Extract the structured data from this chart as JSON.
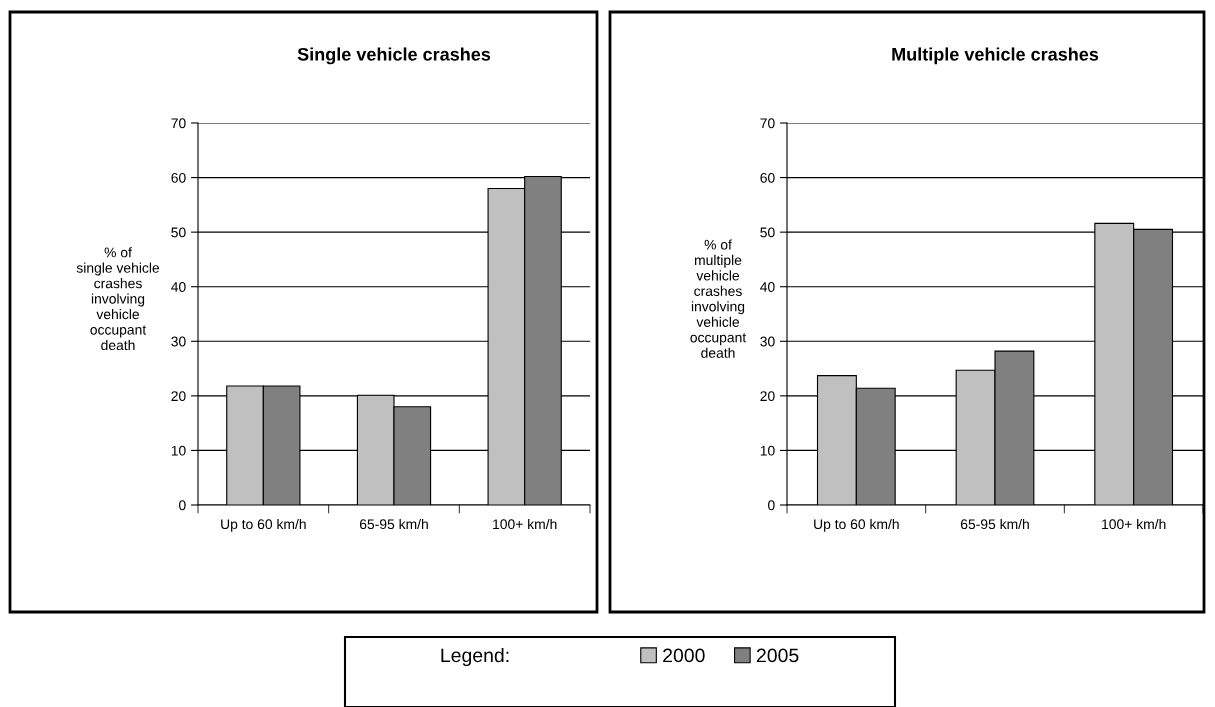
{
  "chart_data": [
    {
      "type": "bar",
      "title": "Single vehicle crashes",
      "ylabel": "% of\nsingle vehicle\ncrashes\ninvolving\nvehicle\noccupant\ndeath",
      "categories": [
        "Up to 60 km/h",
        "65-95 km/h",
        "100+ km/h"
      ],
      "series": [
        {
          "name": "2000",
          "color": "#c0c0c0",
          "values": [
            21.8,
            20.1,
            58.0
          ]
        },
        {
          "name": "2005",
          "color": "#808080",
          "values": [
            21.8,
            18.0,
            60.2
          ]
        }
      ],
      "ylim": [
        0,
        70
      ],
      "yticks": [
        0,
        10,
        20,
        30,
        40,
        50,
        60,
        70
      ],
      "grid": "y",
      "legend": "bottom",
      "legend_title": "Legend:"
    },
    {
      "type": "bar",
      "title": "Multiple vehicle crashes",
      "ylabel": "% of\nmultiple\nvehicle\ncrashes\ninvolving\nvehicle\noccupant\ndeath",
      "categories": [
        "Up to 60 km/h",
        "65-95 km/h",
        "100+ km/h"
      ],
      "series": [
        {
          "name": "2000",
          "color": "#c0c0c0",
          "values": [
            23.7,
            24.7,
            51.6
          ]
        },
        {
          "name": "2005",
          "color": "#808080",
          "values": [
            21.4,
            28.2,
            50.5
          ]
        }
      ],
      "ylim": [
        0,
        70
      ],
      "yticks": [
        0,
        10,
        20,
        30,
        40,
        50,
        60,
        70
      ],
      "grid": "y"
    }
  ]
}
